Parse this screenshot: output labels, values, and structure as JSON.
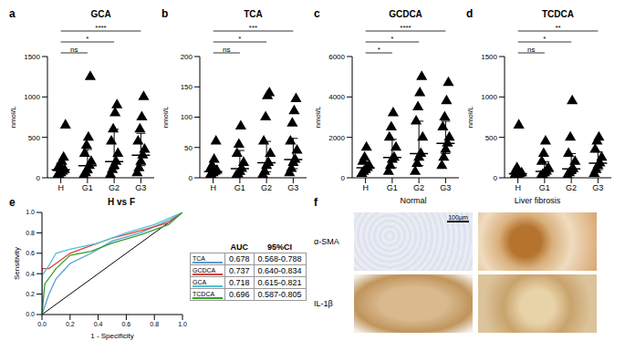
{
  "chart_data": [
    {
      "type": "scatter",
      "panel": "a",
      "title": "GCA",
      "y_label": "nmol/L",
      "categories": [
        "H",
        "G1",
        "G2",
        "G3"
      ],
      "values": [
        [
          20,
          40,
          60,
          80,
          100,
          120,
          150,
          200,
          250,
          650
        ],
        [
          30,
          60,
          100,
          150,
          200,
          300,
          400,
          500,
          1250
        ],
        [
          40,
          100,
          150,
          200,
          300,
          450,
          600,
          800,
          900
        ],
        [
          60,
          120,
          200,
          280,
          350,
          450,
          600,
          750,
          1000
        ]
      ],
      "median": [
        100,
        150,
        200,
        280
      ],
      "error_low": [
        60,
        60,
        110,
        150
      ],
      "error_high": [
        180,
        350,
        600,
        550
      ],
      "ylim": [
        0,
        1500
      ],
      "yticks": [
        0,
        500,
        1000,
        1500
      ],
      "marker": "triangle",
      "color": "#000000",
      "significance": [
        {
          "pair": [
            "H",
            "G1"
          ],
          "label": "ns"
        },
        {
          "pair": [
            "H",
            "G2"
          ],
          "label": "*"
        },
        {
          "pair": [
            "H",
            "G3"
          ],
          "label": "****"
        }
      ]
    },
    {
      "type": "scatter",
      "panel": "b",
      "title": "TCA",
      "y_label": "nmol/L",
      "categories": [
        "H",
        "G1",
        "G2",
        "G3"
      ],
      "values": [
        [
          2,
          5,
          8,
          10,
          12,
          15,
          20,
          30,
          60
        ],
        [
          3,
          6,
          10,
          15,
          25,
          40,
          55,
          85
        ],
        [
          5,
          10,
          20,
          25,
          40,
          60,
          100,
          135,
          140
        ],
        [
          8,
          15,
          25,
          30,
          45,
          60,
          90,
          110,
          130
        ]
      ],
      "median": [
        10,
        15,
        25,
        30
      ],
      "error_low": [
        5,
        6,
        10,
        15
      ],
      "error_high": [
        20,
        45,
        60,
        65
      ],
      "ylim": [
        0,
        200
      ],
      "yticks": [
        0,
        50,
        100,
        150,
        200
      ],
      "marker": "triangle",
      "color": "#000000",
      "significance": [
        {
          "pair": [
            "H",
            "G1"
          ],
          "label": "ns"
        },
        {
          "pair": [
            "H",
            "G2"
          ],
          "label": "*"
        },
        {
          "pair": [
            "H",
            "G3"
          ],
          "label": "***"
        }
      ]
    },
    {
      "type": "scatter",
      "panel": "c",
      "title": "GCDCA",
      "y_label": "nmol/L",
      "categories": [
        "H",
        "G1",
        "G2",
        "G3"
      ],
      "values": [
        [
          200,
          300,
          400,
          500,
          600,
          800,
          1000,
          1500
        ],
        [
          300,
          600,
          900,
          1000,
          1500,
          2000,
          2500,
          3200
        ],
        [
          300,
          700,
          1000,
          1200,
          2000,
          2800,
          3500,
          4200,
          5000
        ],
        [
          600,
          1000,
          1400,
          1700,
          2000,
          2500,
          3000,
          3800,
          4700
        ]
      ],
      "median": [
        500,
        1000,
        1200,
        1700
      ],
      "error_low": [
        300,
        500,
        600,
        1200
      ],
      "error_high": [
        800,
        1900,
        2800,
        2800
      ],
      "ylim": [
        0,
        6000
      ],
      "yticks": [
        0,
        2000,
        4000,
        6000
      ],
      "marker": "triangle",
      "color": "#000000",
      "significance": [
        {
          "pair": [
            "H",
            "G1"
          ],
          "label": "*"
        },
        {
          "pair": [
            "H",
            "G2"
          ],
          "label": "*"
        },
        {
          "pair": [
            "H",
            "G3"
          ],
          "label": "****"
        }
      ]
    },
    {
      "type": "scatter",
      "panel": "d",
      "title": "TCDCA",
      "y_label": "nmol/L",
      "categories": [
        "H",
        "G1",
        "G2",
        "G3"
      ],
      "values": [
        [
          20,
          30,
          40,
          50,
          60,
          80,
          120,
          650
        ],
        [
          20,
          40,
          60,
          80,
          120,
          200,
          300,
          450
        ],
        [
          30,
          60,
          90,
          110,
          200,
          300,
          500,
          950
        ],
        [
          50,
          100,
          150,
          180,
          250,
          350,
          450,
          500
        ]
      ],
      "median": [
        50,
        80,
        110,
        180
      ],
      "error_low": [
        30,
        40,
        50,
        100
      ],
      "error_high": [
        80,
        200,
        300,
        320
      ],
      "ylim": [
        0,
        1500
      ],
      "yticks": [
        0,
        500,
        1000,
        1500
      ],
      "marker": "triangle",
      "color": "#000000",
      "significance": [
        {
          "pair": [
            "H",
            "G1"
          ],
          "label": "ns"
        },
        {
          "pair": [
            "H",
            "G2"
          ],
          "label": "*"
        },
        {
          "pair": [
            "H",
            "G3"
          ],
          "label": "**"
        }
      ]
    },
    {
      "type": "line",
      "panel": "e",
      "title": "H vs F",
      "x_label": "1 - Specificity",
      "y_label": "Sensitivity",
      "xlim": [
        0,
        1
      ],
      "ylim": [
        0,
        1
      ],
      "xticks": [
        {
          "value": 0,
          "label": "0.0"
        },
        {
          "value": 0.2,
          "label": "0.2"
        },
        {
          "value": 0.4,
          "label": "0.4"
        },
        {
          "value": 0.6,
          "label": "0.6"
        },
        {
          "value": 0.8,
          "label": "0.8"
        },
        {
          "value": 1,
          "label": "1.0"
        }
      ],
      "yticks": [
        {
          "value": 0,
          "label": "0.0"
        },
        {
          "value": 0.2,
          "label": "0.2"
        },
        {
          "value": 0.4,
          "label": "0.4"
        },
        {
          "value": 0.6,
          "label": "0.6"
        },
        {
          "value": 0.8,
          "label": "0.8"
        },
        {
          "value": 1,
          "label": "1.0"
        }
      ],
      "diagonal": {
        "x": [
          0,
          1
        ],
        "y": [
          0,
          1
        ]
      },
      "table_header": [
        "AUC",
        "95%CI"
      ],
      "series": [
        {
          "name": "TCA",
          "color": "#5b9bd5",
          "auc": 0.678,
          "ci": "0.568-0.788",
          "x": [
            0,
            0.05,
            0.1,
            0.2,
            0.35,
            0.5,
            0.7,
            0.9,
            1
          ],
          "y": [
            0,
            0.2,
            0.35,
            0.5,
            0.6,
            0.72,
            0.8,
            0.92,
            1
          ]
        },
        {
          "name": "GCDCA",
          "color": "#e0403a",
          "auc": 0.737,
          "ci": "0.640-0.834",
          "x": [
            0,
            0,
            0.05,
            0.1,
            0.2,
            0.3,
            0.5,
            0.7,
            0.9,
            1
          ],
          "y": [
            0,
            0.45,
            0.45,
            0.5,
            0.6,
            0.65,
            0.75,
            0.82,
            0.9,
            1
          ]
        },
        {
          "name": "GCA",
          "color": "#4fc3d6",
          "auc": 0.718,
          "ci": "0.615-0.821",
          "x": [
            0,
            0,
            0.05,
            0.1,
            0.2,
            0.4,
            0.6,
            0.8,
            1
          ],
          "y": [
            0,
            0.38,
            0.48,
            0.6,
            0.64,
            0.7,
            0.8,
            0.88,
            1
          ]
        },
        {
          "name": "TCDCA",
          "color": "#33a02c",
          "auc": 0.696,
          "ci": "0.587-0.805",
          "x": [
            0,
            0.02,
            0.1,
            0.2,
            0.35,
            0.5,
            0.7,
            0.9,
            1
          ],
          "y": [
            0,
            0.3,
            0.45,
            0.58,
            0.62,
            0.7,
            0.78,
            0.88,
            1
          ]
        }
      ]
    }
  ],
  "image_panel": {
    "panel": "f",
    "columns": [
      "Normal",
      "Liver fibrosis"
    ],
    "rows": [
      "α-SMA",
      "IL-1β"
    ],
    "scale_bar": "100μm"
  }
}
